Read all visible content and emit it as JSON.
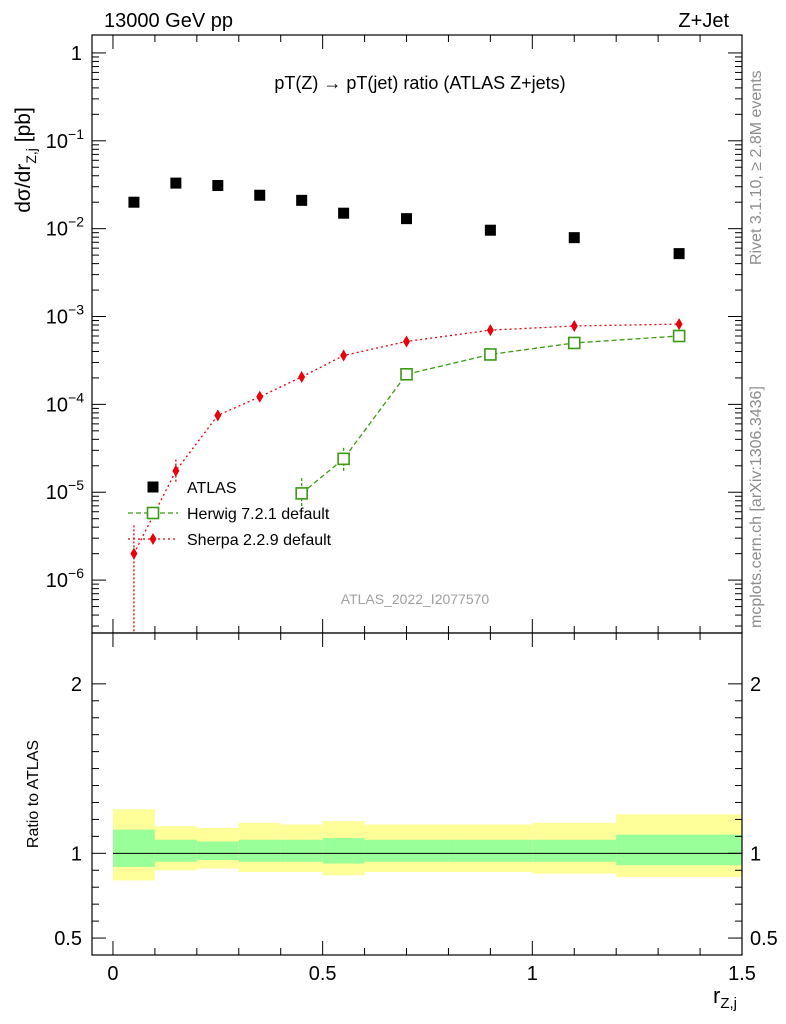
{
  "header": {
    "left": "13000 GeV pp",
    "right": "Z+Jet"
  },
  "side_labels": {
    "rivet": "Rivet 3.1.10, ≥ 2.8M events",
    "mcplots": "mcplots.cern.ch [arXiv:1306.3436]"
  },
  "main": {
    "title": "pT(Z) → pT(jet) ratio (ATLAS Z+jets)",
    "ylabel": "dσ/dr_{Z,j} [pb]",
    "watermark": "ATLAS_2022_I2077570"
  },
  "ratio": {
    "ylabel": "Ratio to ATLAS"
  },
  "x_axis": {
    "label": "r_{Z,j}"
  },
  "colors": {
    "atlas": "#000000",
    "herwig": "#3a9a10",
    "sherpa": "#e8000b",
    "band_inner": "#99ff99",
    "band_outer": "#ffff99"
  },
  "chart_data": [
    {
      "type": "scatter",
      "panel": "main",
      "log_y": true,
      "xlim": [
        -0.05,
        1.5
      ],
      "ylim": [
        2.5e-07,
        1.6
      ],
      "x_ticks": [
        0,
        0.5,
        1,
        1.5
      ],
      "y_ticks": [
        {
          "value": 1,
          "mant": "1",
          "exp": ""
        },
        {
          "value": 0.1,
          "mant": "10",
          "exp": "−1"
        },
        {
          "value": 0.01,
          "mant": "10",
          "exp": "−2"
        },
        {
          "value": 0.001,
          "mant": "10",
          "exp": "−3"
        },
        {
          "value": 0.0001,
          "mant": "10",
          "exp": "−4"
        },
        {
          "value": 1e-05,
          "mant": "10",
          "exp": "−5"
        },
        {
          "value": 1e-06,
          "mant": "10",
          "exp": "−6"
        }
      ],
      "series": [
        {
          "name": "ATLAS",
          "style": "data",
          "points": [
            {
              "x": 0.05,
              "y": 0.02
            },
            {
              "x": 0.15,
              "y": 0.033
            },
            {
              "x": 0.25,
              "y": 0.031
            },
            {
              "x": 0.35,
              "y": 0.024
            },
            {
              "x": 0.45,
              "y": 0.021
            },
            {
              "x": 0.55,
              "y": 0.015
            },
            {
              "x": 0.7,
              "y": 0.013
            },
            {
              "x": 0.9,
              "y": 0.0096
            },
            {
              "x": 1.1,
              "y": 0.0079
            },
            {
              "x": 1.35,
              "y": 0.0052
            }
          ]
        },
        {
          "name": "Herwig 7.2.1 default",
          "style": "herwig",
          "points": [
            {
              "x": 0.45,
              "y": 9.7e-06,
              "ylo": 6.8e-06,
              "yhi": 1.45e-05
            },
            {
              "x": 0.55,
              "y": 2.4e-05,
              "ylo": 1.75e-05,
              "yhi": 3.2e-05
            },
            {
              "x": 0.7,
              "y": 0.00022
            },
            {
              "x": 0.9,
              "y": 0.00037
            },
            {
              "x": 1.1,
              "y": 0.0005
            },
            {
              "x": 1.35,
              "y": 0.0006
            }
          ]
        },
        {
          "name": "Sherpa 2.2.9 default",
          "style": "sherpa",
          "points": [
            {
              "x": 0.05,
              "y": 2e-06,
              "ylo": 1e-07,
              "yhi": 4.2e-06
            },
            {
              "x": 0.15,
              "y": 1.75e-05,
              "ylo": 1.25e-05,
              "yhi": 2.35e-05
            },
            {
              "x": 0.25,
              "y": 7.5e-05,
              "ylo": 6.5e-05,
              "yhi": 8.5e-05
            },
            {
              "x": 0.35,
              "y": 0.000122
            },
            {
              "x": 0.45,
              "y": 0.000205
            },
            {
              "x": 0.55,
              "y": 0.00036
            },
            {
              "x": 0.7,
              "y": 0.00052
            },
            {
              "x": 0.9,
              "y": 0.0007
            },
            {
              "x": 1.1,
              "y": 0.00078
            },
            {
              "x": 1.35,
              "y": 0.00082
            }
          ]
        }
      ]
    },
    {
      "type": "area",
      "panel": "ratio",
      "xlim": [
        -0.05,
        1.5
      ],
      "ylim": [
        0.4,
        2.3
      ],
      "y_ticks": [
        0.5,
        1,
        2
      ],
      "reference_line": 1,
      "bins": [
        {
          "x0": 0.0,
          "x1": 0.1,
          "inner": [
            0.92,
            1.14
          ],
          "outer": [
            0.84,
            1.26
          ]
        },
        {
          "x0": 0.1,
          "x1": 0.2,
          "inner": [
            0.95,
            1.08
          ],
          "outer": [
            0.9,
            1.16
          ]
        },
        {
          "x0": 0.2,
          "x1": 0.3,
          "inner": [
            0.96,
            1.07
          ],
          "outer": [
            0.91,
            1.15
          ]
        },
        {
          "x0": 0.3,
          "x1": 0.4,
          "inner": [
            0.95,
            1.08
          ],
          "outer": [
            0.89,
            1.18
          ]
        },
        {
          "x0": 0.4,
          "x1": 0.5,
          "inner": [
            0.95,
            1.08
          ],
          "outer": [
            0.89,
            1.17
          ]
        },
        {
          "x0": 0.5,
          "x1": 0.6,
          "inner": [
            0.94,
            1.09
          ],
          "outer": [
            0.87,
            1.19
          ]
        },
        {
          "x0": 0.6,
          "x1": 0.8,
          "inner": [
            0.95,
            1.08
          ],
          "outer": [
            0.89,
            1.17
          ]
        },
        {
          "x0": 0.8,
          "x1": 1.0,
          "inner": [
            0.95,
            1.08
          ],
          "outer": [
            0.89,
            1.17
          ]
        },
        {
          "x0": 1.0,
          "x1": 1.2,
          "inner": [
            0.95,
            1.08
          ],
          "outer": [
            0.88,
            1.18
          ]
        },
        {
          "x0": 1.2,
          "x1": 1.5,
          "inner": [
            0.93,
            1.11
          ],
          "outer": [
            0.86,
            1.23
          ]
        }
      ]
    }
  ]
}
